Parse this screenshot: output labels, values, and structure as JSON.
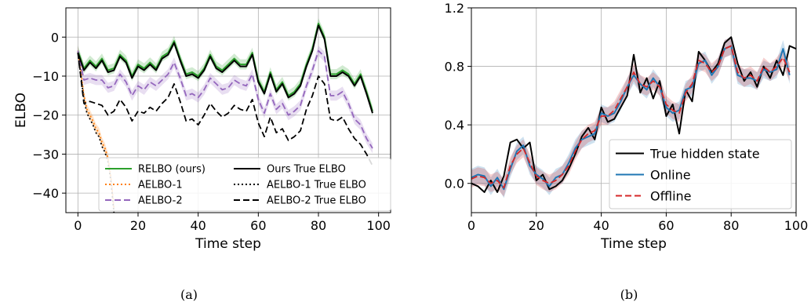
{
  "chart_data": [
    {
      "type": "line",
      "panel_label": "(a)",
      "xlabel": "Time step",
      "ylabel": "ELBO",
      "xlim": [
        -4,
        104
      ],
      "ylim": [
        -45,
        7.5
      ],
      "x_ticks": [
        0,
        20,
        40,
        60,
        80,
        100
      ],
      "y_ticks": [
        0,
        -10,
        -20,
        -30,
        -40
      ],
      "y_tick_labels": [
        "0",
        "−10",
        "−20",
        "−30",
        "−40"
      ],
      "grid": true,
      "legend": {
        "position": "bottom-right",
        "columns": 2,
        "entries": [
          "RELBO (ours)",
          "AELBO-1",
          "AELBO-2",
          "Ours True ELBO",
          "AELBO-1 True ELBO",
          "AELBO-2 True ELBO"
        ]
      },
      "series": [
        {
          "name": "RELBO (ours)",
          "color": "#2ca02c",
          "style": "solid",
          "band": true,
          "x": [
            0,
            2,
            4,
            6,
            8,
            10,
            12,
            14,
            16,
            18,
            20,
            22,
            24,
            26,
            28,
            30,
            32,
            34,
            36,
            38,
            40,
            42,
            44,
            46,
            48,
            50,
            52,
            54,
            56,
            58,
            60,
            62,
            64,
            66,
            68,
            70,
            72,
            74,
            76,
            78,
            80,
            82,
            84,
            86,
            88,
            90,
            92,
            94,
            96,
            98
          ],
          "y": [
            -3.5,
            -8,
            -6,
            -7.5,
            -5.5,
            -8.5,
            -8,
            -4.5,
            -6,
            -10,
            -7,
            -8,
            -6.5,
            -8,
            -5,
            -4,
            -1,
            -5.5,
            -9.5,
            -9,
            -10,
            -8,
            -4.5,
            -7.5,
            -8.5,
            -7,
            -5.5,
            -7,
            -7,
            -4,
            -11,
            -14,
            -9,
            -13.5,
            -11.5,
            -15,
            -14,
            -12,
            -7,
            -3,
            3.5,
            0,
            -9.5,
            -9.5,
            -8.5,
            -9.5,
            -12,
            -9.5,
            -14,
            -19
          ]
        },
        {
          "name": "AELBO-1",
          "color": "#ff7f0e",
          "style": "dotted",
          "band": true,
          "x": [
            0,
            1,
            2,
            3,
            4,
            5,
            6,
            7,
            8,
            9,
            10,
            11,
            12
          ],
          "y": [
            -3.5,
            -9,
            -15,
            -18.5,
            -20,
            -21.5,
            -23.5,
            -24.5,
            -27,
            -28.5,
            -31,
            -36,
            -44
          ]
        },
        {
          "name": "AELBO-2",
          "color": "#9467bd",
          "style": "dashed",
          "band": true,
          "x": [
            0,
            2,
            4,
            6,
            8,
            10,
            12,
            14,
            16,
            18,
            20,
            22,
            24,
            26,
            28,
            30,
            32,
            34,
            36,
            38,
            40,
            42,
            44,
            46,
            48,
            50,
            52,
            54,
            56,
            58,
            60,
            62,
            64,
            66,
            68,
            70,
            72,
            74,
            76,
            78,
            80,
            82,
            84,
            86,
            88,
            90,
            92,
            94,
            96,
            98
          ],
          "y": [
            -3.5,
            -11,
            -10.5,
            -11,
            -11,
            -13,
            -12.5,
            -9.5,
            -11.5,
            -15,
            -12.5,
            -13.5,
            -11.5,
            -12.5,
            -11,
            -9.5,
            -6.5,
            -10.5,
            -15,
            -14.5,
            -15.5,
            -13.5,
            -10.5,
            -12,
            -13.5,
            -13,
            -11,
            -12,
            -12.5,
            -9.5,
            -16,
            -19.5,
            -14.5,
            -18.5,
            -17,
            -20,
            -19,
            -17.5,
            -12.5,
            -8.5,
            -3.5,
            -5,
            -15,
            -15,
            -14,
            -17,
            -21,
            -22.5,
            -26,
            -28.5
          ]
        },
        {
          "name": "Ours True ELBO",
          "color": "#000000",
          "style": "solid",
          "band": false,
          "x": [
            0,
            2,
            4,
            6,
            8,
            10,
            12,
            14,
            16,
            18,
            20,
            22,
            24,
            26,
            28,
            30,
            32,
            34,
            36,
            38,
            40,
            42,
            44,
            46,
            48,
            50,
            52,
            54,
            56,
            58,
            60,
            62,
            64,
            66,
            68,
            70,
            72,
            74,
            76,
            78,
            80,
            82,
            84,
            86,
            88,
            90,
            92,
            94,
            96,
            98
          ],
          "y": [
            -4,
            -8.5,
            -6.5,
            -8,
            -6,
            -9,
            -8.5,
            -5,
            -6.5,
            -10.5,
            -7.5,
            -8.5,
            -7,
            -8.5,
            -5.5,
            -4.5,
            -1.5,
            -6,
            -10,
            -9.5,
            -10.5,
            -8.5,
            -5,
            -8,
            -9,
            -7.5,
            -6,
            -7.5,
            -7.5,
            -4.5,
            -11.5,
            -14.5,
            -9.5,
            -14,
            -12,
            -15.5,
            -14.5,
            -12.5,
            -7.5,
            -3.5,
            3,
            -0.5,
            -10,
            -10,
            -9,
            -10,
            -12.5,
            -10,
            -14.5,
            -19.5
          ]
        },
        {
          "name": "AELBO-1 True ELBO",
          "color": "#000000",
          "style": "dotted",
          "band": false,
          "x": [
            0,
            1,
            2,
            3,
            4,
            5,
            6,
            7,
            8,
            9,
            10,
            11,
            12
          ],
          "y": [
            -4,
            -10,
            -16,
            -19.5,
            -21,
            -22.5,
            -24.5,
            -25.5,
            -28,
            -29.5,
            -32,
            -37,
            -45
          ]
        },
        {
          "name": "AELBO-2 True ELBO",
          "color": "#000000",
          "style": "dashed",
          "band": false,
          "x": [
            0,
            2,
            4,
            6,
            8,
            10,
            12,
            14,
            16,
            18,
            20,
            22,
            24,
            26,
            28,
            30,
            32,
            34,
            36,
            38,
            40,
            42,
            44,
            46,
            48,
            50,
            52,
            54,
            56,
            58,
            60,
            62,
            64,
            66,
            68,
            70,
            72,
            74,
            76,
            78,
            80,
            82,
            84,
            86,
            88,
            90,
            92,
            94,
            96,
            98
          ],
          "y": [
            -4,
            -17,
            -16.5,
            -17,
            -17.5,
            -20,
            -19,
            -16,
            -18,
            -21.5,
            -19,
            -19.5,
            -18,
            -19,
            -17,
            -15.5,
            -12,
            -16.5,
            -21.5,
            -21,
            -22.5,
            -20,
            -17,
            -19,
            -20.5,
            -19.5,
            -17.5,
            -18.5,
            -19,
            -16,
            -22,
            -25.5,
            -20.5,
            -24.5,
            -23.5,
            -26.5,
            -25.5,
            -24,
            -18.5,
            -15,
            -10,
            -12,
            -21,
            -21.5,
            -20.5,
            -23.5,
            -26,
            -27.5,
            -30,
            -33
          ]
        }
      ]
    },
    {
      "type": "line",
      "panel_label": "(b)",
      "xlabel": "Time step",
      "ylabel": "",
      "xlim": [
        0,
        100
      ],
      "ylim": [
        -0.2,
        1.2
      ],
      "x_ticks": [
        0,
        20,
        40,
        60,
        80,
        100
      ],
      "y_ticks": [
        0.0,
        0.4,
        0.8,
        1.2
      ],
      "y_tick_labels": [
        "0.0",
        "0.4",
        "0.8",
        "1.2"
      ],
      "grid": true,
      "legend": {
        "position": "bottom-right",
        "columns": 1,
        "entries": [
          "True hidden state",
          "Online",
          "Offline"
        ]
      },
      "series": [
        {
          "name": "True hidden state",
          "color": "#000000",
          "style": "solid",
          "band": false,
          "x": [
            0,
            2,
            4,
            6,
            8,
            10,
            12,
            14,
            16,
            18,
            20,
            22,
            24,
            26,
            28,
            30,
            32,
            34,
            36,
            38,
            40,
            42,
            44,
            46,
            48,
            50,
            52,
            54,
            56,
            58,
            60,
            62,
            64,
            66,
            68,
            70,
            72,
            74,
            76,
            78,
            80,
            82,
            84,
            86,
            88,
            90,
            92,
            94,
            96,
            98,
            100
          ],
          "y": [
            0.0,
            -0.02,
            -0.06,
            0.02,
            -0.06,
            0.05,
            0.28,
            0.3,
            0.24,
            0.28,
            0.02,
            0.06,
            -0.04,
            -0.02,
            0.02,
            0.1,
            0.2,
            0.32,
            0.38,
            0.3,
            0.52,
            0.42,
            0.44,
            0.52,
            0.6,
            0.88,
            0.62,
            0.72,
            0.58,
            0.7,
            0.46,
            0.54,
            0.34,
            0.64,
            0.56,
            0.9,
            0.84,
            0.76,
            0.82,
            0.96,
            1.0,
            0.82,
            0.7,
            0.76,
            0.66,
            0.8,
            0.72,
            0.84,
            0.74,
            0.94,
            0.92
          ]
        },
        {
          "name": "Online",
          "color": "#1f77b4",
          "style": "solid",
          "band": true,
          "x": [
            0,
            2,
            4,
            6,
            8,
            10,
            12,
            14,
            16,
            18,
            20,
            22,
            24,
            26,
            28,
            30,
            32,
            34,
            36,
            38,
            40,
            42,
            44,
            46,
            48,
            50,
            52,
            54,
            56,
            58,
            60,
            62,
            64,
            66,
            68,
            70,
            72,
            74,
            76,
            78,
            80,
            82,
            84,
            86,
            88,
            90,
            92,
            94,
            96,
            98
          ],
          "y": [
            0.04,
            0.06,
            0.05,
            -0.02,
            0.04,
            -0.04,
            0.1,
            0.22,
            0.26,
            0.12,
            0.06,
            0.03,
            -0.02,
            0.04,
            0.06,
            0.14,
            0.24,
            0.3,
            0.32,
            0.34,
            0.48,
            0.46,
            0.48,
            0.56,
            0.66,
            0.74,
            0.68,
            0.64,
            0.72,
            0.66,
            0.52,
            0.48,
            0.5,
            0.64,
            0.66,
            0.82,
            0.84,
            0.74,
            0.8,
            0.92,
            0.94,
            0.74,
            0.72,
            0.72,
            0.7,
            0.78,
            0.76,
            0.78,
            0.92,
            0.74
          ]
        },
        {
          "name": "Offline",
          "color": "#d62728",
          "style": "dashed",
          "band": true,
          "x": [
            0,
            2,
            4,
            6,
            8,
            10,
            12,
            14,
            16,
            18,
            20,
            22,
            24,
            26,
            28,
            30,
            32,
            34,
            36,
            38,
            40,
            42,
            44,
            46,
            48,
            50,
            52,
            54,
            56,
            58,
            60,
            62,
            64,
            66,
            68,
            70,
            72,
            74,
            76,
            78,
            80,
            82,
            84,
            86,
            88,
            90,
            92,
            94,
            96,
            98
          ],
          "y": [
            0.03,
            0.05,
            0.04,
            0.0,
            0.02,
            -0.03,
            0.12,
            0.2,
            0.24,
            0.14,
            0.05,
            0.02,
            0.0,
            0.02,
            0.06,
            0.12,
            0.22,
            0.3,
            0.34,
            0.36,
            0.46,
            0.46,
            0.5,
            0.58,
            0.66,
            0.76,
            0.68,
            0.66,
            0.7,
            0.66,
            0.54,
            0.5,
            0.48,
            0.62,
            0.68,
            0.84,
            0.82,
            0.76,
            0.8,
            0.92,
            0.94,
            0.76,
            0.72,
            0.74,
            0.7,
            0.8,
            0.76,
            0.8,
            0.86,
            0.76
          ]
        }
      ]
    }
  ]
}
